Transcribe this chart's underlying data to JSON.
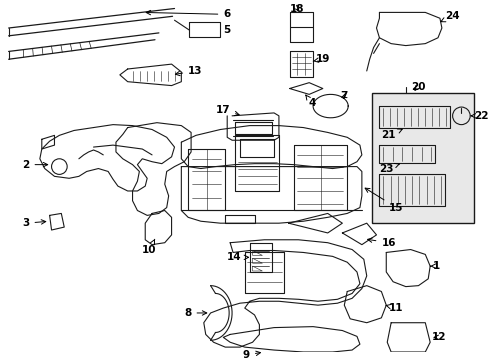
{
  "bg_color": "#ffffff",
  "line_color": "#1a1a1a",
  "fig_width": 4.89,
  "fig_height": 3.6,
  "dpi": 100,
  "lw": 0.8
}
